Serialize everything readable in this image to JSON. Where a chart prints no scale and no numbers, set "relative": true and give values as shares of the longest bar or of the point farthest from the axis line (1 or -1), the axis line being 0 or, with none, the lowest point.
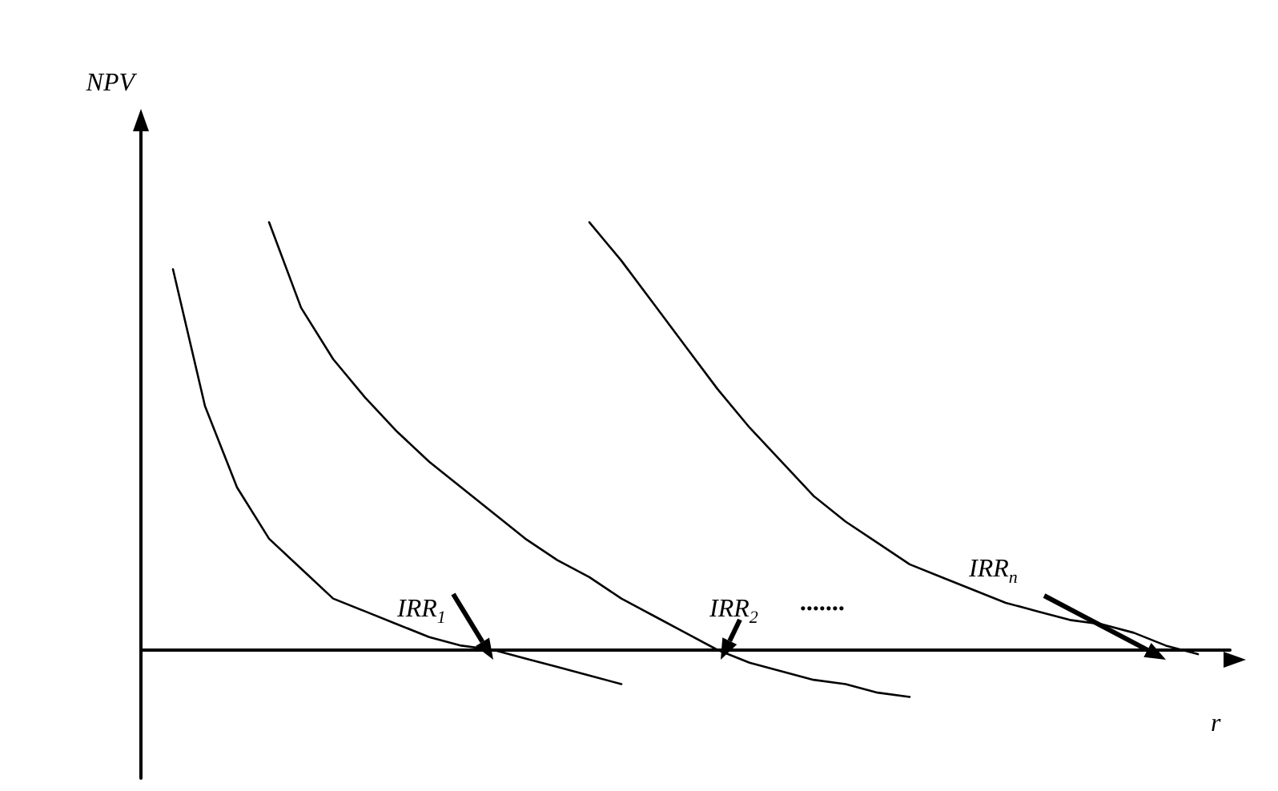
{
  "chart_data": {
    "type": "line",
    "relative": true,
    "xlabel": "r",
    "ylabel": "NPV",
    "grid": false,
    "marker": "none",
    "line_style": "solid",
    "categories": [
      null,
      null,
      null,
      null,
      null,
      null,
      null,
      null,
      null,
      null,
      null,
      null,
      null,
      null,
      null,
      null,
      null,
      null,
      null,
      null,
      null,
      null,
      null,
      null,
      null,
      null,
      null,
      null,
      null,
      null,
      null,
      null,
      null,
      null,
      null
    ],
    "series": [
      {
        "color": "#000000",
        "values": [
          null,
          0.89,
          0.57,
          0.38,
          0.26,
          0.19,
          0.12,
          0.09,
          0.06,
          0.03,
          0.01,
          0,
          -0.02,
          -0.04,
          -0.06,
          -0.08,
          null,
          null,
          null,
          null,
          null,
          null,
          null,
          null,
          null,
          null,
          null,
          null,
          null,
          null,
          null,
          null,
          null,
          null,
          null
        ]
      },
      {
        "color": "#000000",
        "values": [
          null,
          null,
          null,
          null,
          1,
          0.8,
          0.68,
          0.59,
          0.51,
          0.44,
          0.38,
          0.32,
          0.26,
          0.21,
          0.17,
          0.12,
          0.08,
          0.04,
          0,
          -0.03,
          -0.05,
          -0.07,
          -0.08,
          -0.1,
          -0.11,
          null,
          null,
          null,
          null,
          null,
          null,
          null,
          null,
          null,
          null
        ]
      },
      {
        "color": "#000000",
        "values": [
          null,
          null,
          null,
          null,
          null,
          null,
          null,
          null,
          null,
          null,
          null,
          null,
          null,
          null,
          1,
          0.91,
          0.81,
          0.71,
          0.61,
          0.52,
          0.44,
          0.36,
          0.3,
          0.25,
          0.2,
          0.17,
          0.14,
          0.11,
          0.09,
          0.07,
          0.06,
          0.04,
          0.01,
          -0.01,
          null
        ]
      }
    ],
    "annotations": [
      "IRR$_{1}$",
      "IRR$_{2}$",
      ".......",
      "IRR$_{n}$"
    ]
  }
}
